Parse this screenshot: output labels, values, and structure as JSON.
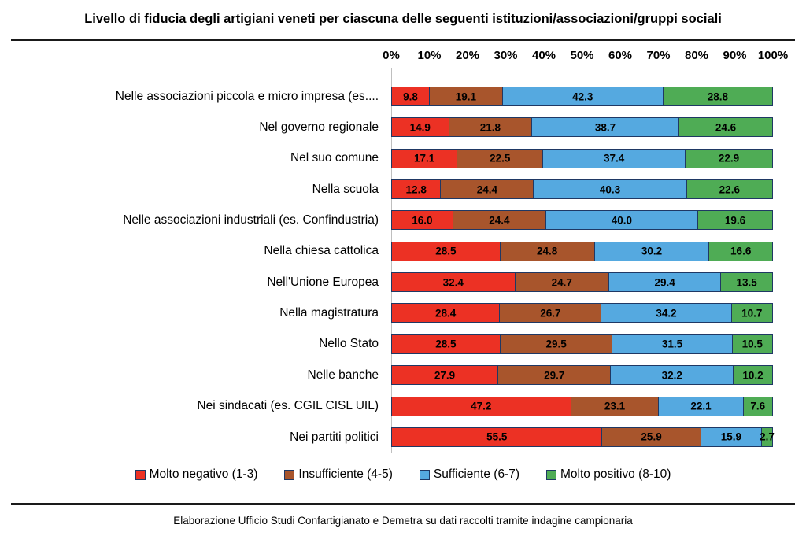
{
  "title": "Livello di fiducia degli artigiani veneti per ciascuna delle seguenti istituzioni/associazioni/gruppi sociali",
  "footer": "Elaborazione Ufficio Studi Confartigianato e Demetra su dati raccolti tramite indagine campionaria",
  "colors": {
    "molto_negativo": "#ec3124",
    "insufficiente": "#a8552c",
    "sufficiente": "#55a9e0",
    "molto_positivo": "#4fac55",
    "bar_border": "#1f3864",
    "divider": "#1a1a1a",
    "axis_line": "#bfbfbf"
  },
  "chart_data": {
    "type": "bar",
    "orientation": "horizontal",
    "stacked": true,
    "unit": "percent",
    "xlim": [
      0,
      100
    ],
    "grid": false,
    "legend_position": "bottom",
    "x_ticks": [
      "0%",
      "10%",
      "20%",
      "30%",
      "40%",
      "50%",
      "60%",
      "70%",
      "80%",
      "90%",
      "100%"
    ],
    "categories": [
      "Nelle associazioni piccola e micro impresa (es....",
      "Nel governo regionale",
      "Nel suo comune",
      "Nella scuola",
      "Nelle associazioni industriali (es. Confindustria)",
      "Nella chiesa cattolica",
      "Nell'Unione Europea",
      "Nella magistratura",
      "Nello Stato",
      "Nelle banche",
      "Nei sindacati (es. CGIL CISL UIL)",
      "Nei partiti politici"
    ],
    "series": [
      {
        "name": "Molto negativo (1-3)",
        "color": "#ec3124",
        "values": [
          9.8,
          14.9,
          17.1,
          12.8,
          16.0,
          28.5,
          32.4,
          28.4,
          28.5,
          27.9,
          47.2,
          55.5
        ]
      },
      {
        "name": "Insufficiente (4-5)",
        "color": "#a8552c",
        "values": [
          19.1,
          21.8,
          22.5,
          24.4,
          24.4,
          24.8,
          24.7,
          26.7,
          29.5,
          29.7,
          23.1,
          25.9
        ]
      },
      {
        "name": "Sufficiente (6-7)",
        "color": "#55a9e0",
        "values": [
          42.3,
          38.7,
          37.4,
          40.3,
          40.0,
          30.2,
          29.4,
          34.2,
          31.5,
          32.2,
          22.1,
          15.9
        ]
      },
      {
        "name": "Molto positivo (8-10)",
        "color": "#4fac55",
        "values": [
          28.8,
          24.6,
          22.9,
          22.6,
          19.6,
          16.6,
          13.5,
          10.7,
          10.5,
          10.2,
          7.6,
          2.7
        ]
      }
    ]
  }
}
